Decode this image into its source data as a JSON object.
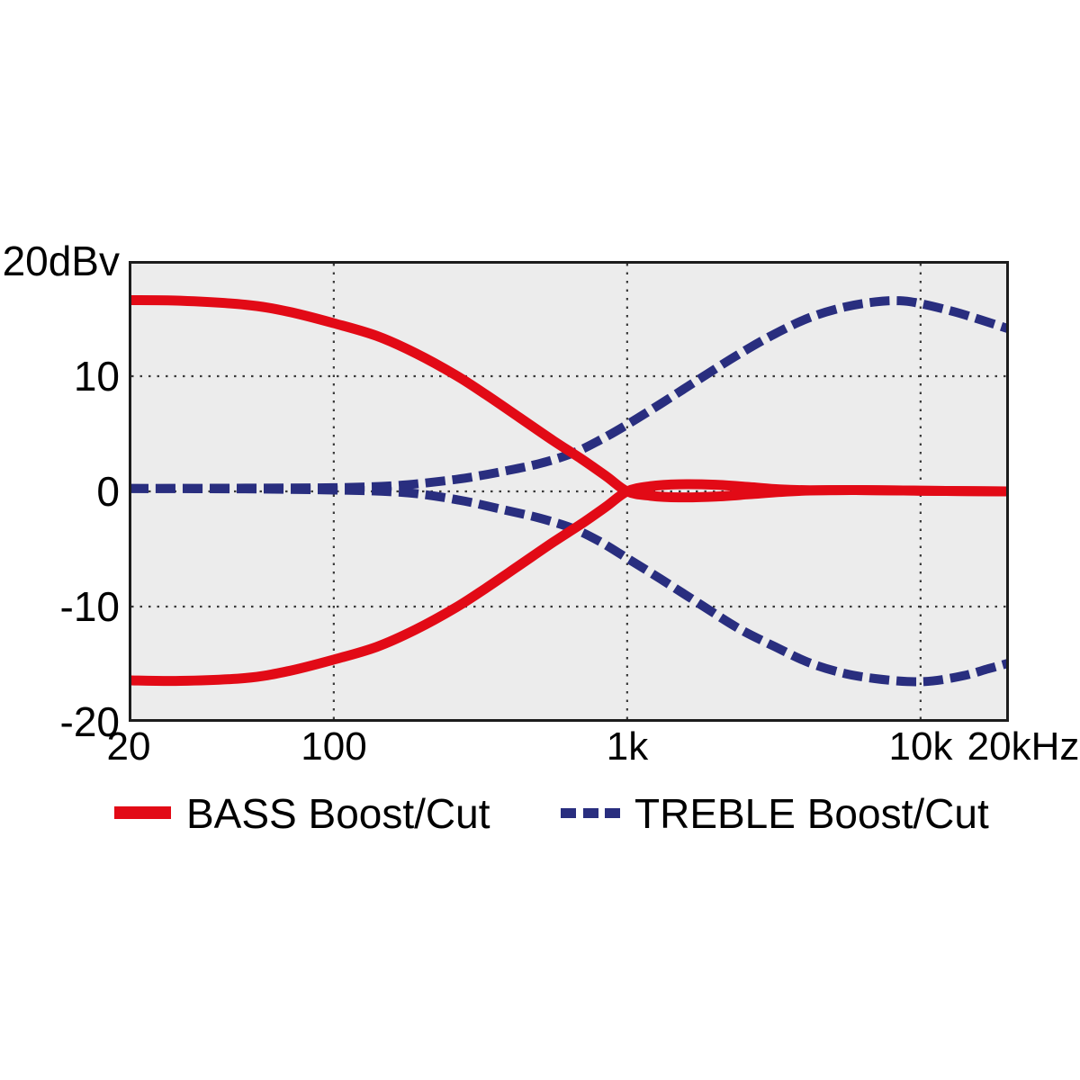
{
  "chart_data": {
    "type": "line",
    "x_scale": "log",
    "x_range_hz": [
      20,
      20000
    ],
    "y_range_db": [
      -20,
      20
    ],
    "y_unit": "dBv",
    "grid": "dotted",
    "grid_x_hz": [
      100,
      1000,
      10000
    ],
    "grid_y_db": [
      10,
      0,
      -10
    ],
    "y_ticks": [
      {
        "db": 20,
        "label": "20dBv"
      },
      {
        "db": 10,
        "label": "10"
      },
      {
        "db": 0,
        "label": "0"
      },
      {
        "db": -10,
        "label": "-10"
      },
      {
        "db": -20,
        "label": "-20"
      }
    ],
    "x_ticks": [
      {
        "hz": 20,
        "label": "20"
      },
      {
        "hz": 100,
        "label": "100"
      },
      {
        "hz": 1000,
        "label": "1k"
      },
      {
        "hz": 10000,
        "label": "10k"
      },
      {
        "hz": 20000,
        "label": "20kHz"
      }
    ],
    "colors": {
      "bass": "#e20a16",
      "treble": "#292e7f",
      "plot_bg": "#ececec",
      "grid": "#3a3a3a",
      "border": "#1c1c1c",
      "text": "#000000"
    },
    "legend": [
      {
        "label": "BASS Boost/Cut",
        "color": "#e20a16",
        "style": "solid"
      },
      {
        "label": "TREBLE Boost/Cut",
        "color": "#292e7f",
        "style": "dashed"
      }
    ],
    "series": [
      {
        "id": "treble-boost",
        "name": "TREBLE Boost",
        "color": "#292e7f",
        "style": "dashed",
        "points": [
          [
            20,
            0.25
          ],
          [
            50,
            0.28
          ],
          [
            100,
            0.32
          ],
          [
            150,
            0.45
          ],
          [
            200,
            0.7
          ],
          [
            280,
            1.15
          ],
          [
            380,
            1.75
          ],
          [
            500,
            2.4
          ],
          [
            650,
            3.3
          ],
          [
            800,
            4.4
          ],
          [
            1000,
            5.8
          ],
          [
            1300,
            7.6
          ],
          [
            1800,
            9.9
          ],
          [
            2400,
            11.9
          ],
          [
            3200,
            13.7
          ],
          [
            4200,
            15.1
          ],
          [
            5500,
            16.0
          ],
          [
            7000,
            16.45
          ],
          [
            8500,
            16.55
          ],
          [
            10000,
            16.3
          ],
          [
            13000,
            15.6
          ],
          [
            16000,
            14.9
          ],
          [
            20000,
            14.1
          ]
        ]
      },
      {
        "id": "treble-cut",
        "name": "TREBLE Cut",
        "color": "#292e7f",
        "style": "dashed",
        "points": [
          [
            20,
            0.25
          ],
          [
            50,
            0.22
          ],
          [
            100,
            0.12
          ],
          [
            150,
            0.0
          ],
          [
            200,
            -0.25
          ],
          [
            280,
            -0.85
          ],
          [
            380,
            -1.6
          ],
          [
            500,
            -2.3
          ],
          [
            650,
            -3.2
          ],
          [
            800,
            -4.3
          ],
          [
            1000,
            -5.8
          ],
          [
            1300,
            -7.6
          ],
          [
            1800,
            -9.9
          ],
          [
            2400,
            -11.9
          ],
          [
            3200,
            -13.5
          ],
          [
            4200,
            -14.9
          ],
          [
            5500,
            -15.8
          ],
          [
            7000,
            -16.25
          ],
          [
            9000,
            -16.5
          ],
          [
            11000,
            -16.45
          ],
          [
            14000,
            -16.0
          ],
          [
            17000,
            -15.4
          ],
          [
            20000,
            -14.9
          ]
        ]
      },
      {
        "id": "bass-boost",
        "name": "BASS Boost",
        "color": "#e20a16",
        "style": "solid",
        "points": [
          [
            20,
            16.6
          ],
          [
            30,
            16.55
          ],
          [
            50,
            16.2
          ],
          [
            70,
            15.6
          ],
          [
            100,
            14.6
          ],
          [
            140,
            13.5
          ],
          [
            190,
            12.0
          ],
          [
            260,
            10.1
          ],
          [
            330,
            8.4
          ],
          [
            430,
            6.4
          ],
          [
            560,
            4.4
          ],
          [
            700,
            2.8
          ],
          [
            850,
            1.3
          ],
          [
            1000,
            0.0
          ],
          [
            1200,
            -0.38
          ],
          [
            1500,
            -0.52
          ],
          [
            2000,
            -0.45
          ],
          [
            2600,
            -0.25
          ],
          [
            3300,
            -0.05
          ],
          [
            4200,
            0.08
          ],
          [
            6000,
            0.12
          ],
          [
            10000,
            0.06
          ],
          [
            20000,
            0.0
          ]
        ]
      },
      {
        "id": "bass-cut",
        "name": "BASS Cut",
        "color": "#e20a16",
        "style": "solid",
        "points": [
          [
            20,
            -16.4
          ],
          [
            30,
            -16.45
          ],
          [
            50,
            -16.2
          ],
          [
            70,
            -15.6
          ],
          [
            100,
            -14.6
          ],
          [
            140,
            -13.5
          ],
          [
            190,
            -12.0
          ],
          [
            260,
            -10.1
          ],
          [
            330,
            -8.4
          ],
          [
            430,
            -6.4
          ],
          [
            560,
            -4.4
          ],
          [
            700,
            -2.8
          ],
          [
            850,
            -1.3
          ],
          [
            1000,
            0.0
          ],
          [
            1200,
            0.45
          ],
          [
            1500,
            0.62
          ],
          [
            2000,
            0.58
          ],
          [
            2600,
            0.38
          ],
          [
            3300,
            0.18
          ],
          [
            4200,
            0.1
          ],
          [
            6000,
            0.12
          ],
          [
            10000,
            0.06
          ],
          [
            20000,
            0.0
          ]
        ]
      }
    ]
  }
}
